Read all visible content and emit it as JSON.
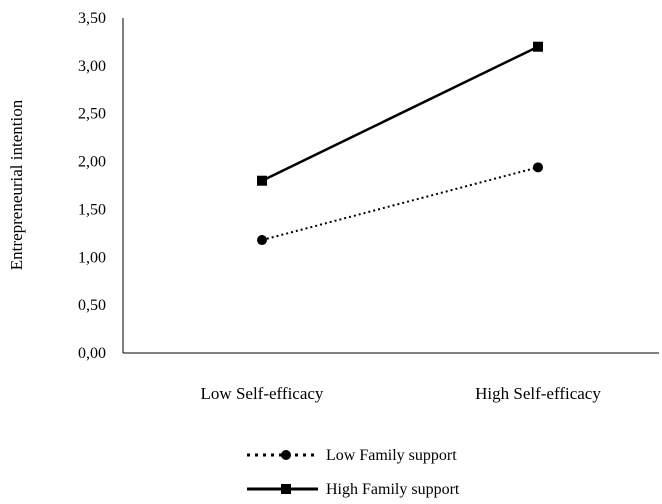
{
  "chart_data": {
    "type": "line",
    "title": "",
    "xlabel": "",
    "ylabel": "Entrepreneurial intention",
    "categories": [
      "Low Self-efficacy",
      "High Self-efficacy"
    ],
    "ylim": [
      0,
      3.5
    ],
    "yticks": [
      "0,00",
      "0,50",
      "1,00",
      "1,50",
      "2,00",
      "2,50",
      "3,00",
      "3,50"
    ],
    "grid": false,
    "legend_position": "bottom",
    "series": [
      {
        "name": "Low Family support",
        "values": [
          1.18,
          1.94
        ],
        "line_style": "dotted",
        "marker": "circle",
        "color": "#000000"
      },
      {
        "name": "High Family support",
        "values": [
          1.8,
          3.2
        ],
        "line_style": "solid",
        "marker": "square",
        "color": "#000000"
      }
    ]
  }
}
